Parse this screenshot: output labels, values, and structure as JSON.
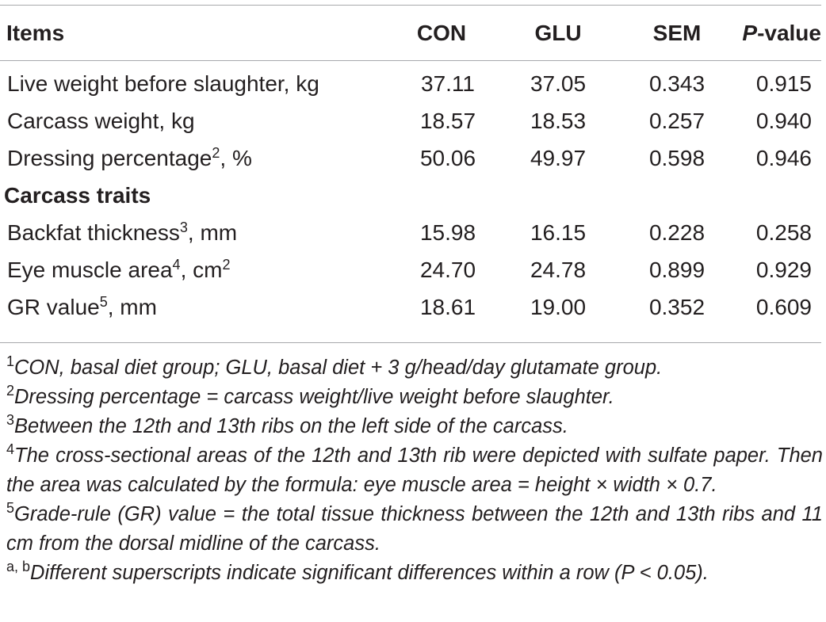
{
  "table": {
    "headers": {
      "items": "Items",
      "con": "CON",
      "glu": "GLU",
      "sem": "SEM",
      "p_italic": "P",
      "p_rest": "-value"
    },
    "rows": [
      {
        "label": "Live weight before slaughter, kg",
        "sup": "",
        "label_after": "",
        "sup2": "",
        "con": "37.11",
        "glu": "37.05",
        "sem": "0.343",
        "p": "0.915"
      },
      {
        "label": "Carcass weight, kg",
        "sup": "",
        "label_after": "",
        "sup2": "",
        "con": "18.57",
        "glu": "18.53",
        "sem": "0.257",
        "p": "0.940"
      },
      {
        "label": "Dressing percentage",
        "sup": "2",
        "label_after": ", %",
        "sup2": "",
        "con": "50.06",
        "glu": "49.97",
        "sem": "0.598",
        "p": "0.946"
      }
    ],
    "section": "Carcass traits",
    "section_rows": [
      {
        "label": "Backfat thickness",
        "sup": "3",
        "label_after": ", mm",
        "sup2": "",
        "con": "15.98",
        "glu": "16.15",
        "sem": "0.228",
        "p": "0.258"
      },
      {
        "label": "Eye muscle area",
        "sup": "4",
        "label_after": ", cm",
        "sup2": "2",
        "con": "24.70",
        "glu": "24.78",
        "sem": "0.899",
        "p": "0.929"
      },
      {
        "label": "GR value",
        "sup": "5",
        "label_after": ", mm",
        "sup2": "",
        "con": "18.61",
        "glu": "19.00",
        "sem": "0.352",
        "p": "0.609"
      }
    ]
  },
  "footnotes": [
    {
      "mark": "1",
      "text": "CON, basal diet group; GLU, basal diet + 3 g/head/day glutamate group."
    },
    {
      "mark": "2",
      "text": "Dressing percentage = carcass weight/live weight before slaughter."
    },
    {
      "mark": "3",
      "text": "Between the 12th and 13th ribs on the left side of the carcass."
    },
    {
      "mark": "4",
      "text": "The cross-sectional areas of the 12th and 13th rib were depicted with sulfate paper. Then the area was calculated by the formula: eye muscle area = height × width × 0.7."
    },
    {
      "mark": "5",
      "text": "Grade-rule (GR) value = the total tissue thickness between the 12th and 13th ribs and 11 cm from the dorsal midline of the carcass."
    },
    {
      "mark": "a, b",
      "text": "Different superscripts indicate significant differences within a row (P < 0.05)."
    }
  ]
}
